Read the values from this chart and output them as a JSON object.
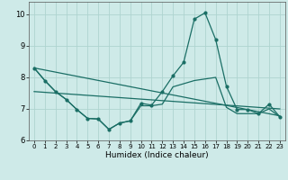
{
  "xlabel": "Humidex (Indice chaleur)",
  "bg_color": "#ceeae8",
  "line_color": "#1a6e65",
  "xlim": [
    -0.5,
    23.5
  ],
  "ylim": [
    6.0,
    10.4
  ],
  "yticks": [
    6,
    7,
    8,
    9,
    10
  ],
  "xticks": [
    0,
    1,
    2,
    3,
    4,
    5,
    6,
    7,
    8,
    9,
    10,
    11,
    12,
    13,
    14,
    15,
    16,
    17,
    18,
    19,
    20,
    21,
    22,
    23
  ],
  "grid_color": "#aed4d0",
  "series1_x": [
    0,
    1,
    2,
    3,
    4,
    5,
    6,
    7,
    8,
    9,
    10,
    11,
    12,
    13,
    14,
    15,
    16,
    17,
    18,
    19,
    20,
    21,
    22,
    23
  ],
  "series1_y": [
    8.3,
    7.9,
    7.55,
    7.3,
    6.98,
    6.7,
    6.68,
    6.35,
    6.55,
    6.62,
    7.18,
    7.12,
    7.55,
    8.05,
    8.48,
    9.85,
    10.05,
    9.2,
    7.72,
    6.98,
    6.98,
    6.85,
    7.15,
    6.75
  ],
  "series2_x": [
    0,
    1,
    2,
    3,
    4,
    5,
    6,
    7,
    8,
    9,
    10,
    11,
    12,
    13,
    14,
    15,
    16,
    17,
    18,
    19,
    20,
    21,
    22,
    23
  ],
  "series2_y": [
    8.3,
    7.9,
    7.55,
    7.3,
    6.98,
    6.7,
    6.68,
    6.35,
    6.55,
    6.62,
    7.1,
    7.1,
    7.15,
    7.7,
    7.8,
    7.9,
    7.95,
    8.0,
    7.05,
    6.85,
    6.85,
    6.85,
    7.0,
    6.75
  ],
  "series3_x": [
    0,
    23
  ],
  "series3_y": [
    8.3,
    6.78
  ],
  "series4_x": [
    0,
    23
  ],
  "series4_y": [
    7.55,
    7.0
  ]
}
